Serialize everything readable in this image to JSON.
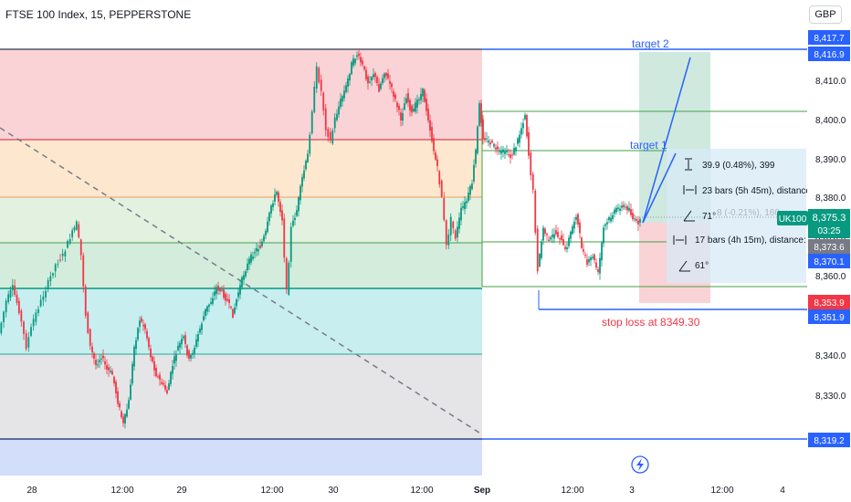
{
  "header": {
    "title": "FTSE 100 Index, 15, PEPPERSTONE",
    "currency": "GBP"
  },
  "price_axis": {
    "ticks": [
      "8,410.0",
      "8,400.0",
      "8,390.0",
      "8,380.0",
      "8,370.0",
      "8,360.0",
      "8,350.0",
      "8,340.0",
      "8,330.0"
    ]
  },
  "time_axis": {
    "ticks": [
      "28",
      "12:00",
      "29",
      "12:00",
      "30",
      "12:00",
      "Sep",
      "12:00",
      "3",
      "12:00",
      "4"
    ]
  },
  "price_labels": [
    {
      "text": "8,417.7",
      "color": "#2962ff"
    },
    {
      "text": "8,416.9",
      "color": "#2962ff"
    },
    {
      "text": "8,370.1",
      "color": "#2962ff"
    },
    {
      "text": "8,373.6",
      "color": "#787b86"
    },
    {
      "text": "8,353.9",
      "color": "#f23645"
    },
    {
      "text": "8,351.9",
      "color": "#2962ff"
    },
    {
      "text": "8,319.2",
      "color": "#2962ff"
    }
  ],
  "current_price": {
    "symbol": "UK100",
    "price": "8,375.3",
    "countdown": "03:25",
    "color": "#089981"
  },
  "annotations": {
    "target2": "target 2",
    "target1": "target 1",
    "stop_loss": "stop loss at 8349.30"
  },
  "measure": {
    "price_range": "39.9 (0.48%), 399",
    "bars_range": "23 bars (5h 45m), distance:",
    "angle_top": "71°",
    "bars_range2": "17 bars (4h 15m), distance: 9",
    "angle_bottom": "61°",
    "hidden_text": "8 (-0.21%), 160"
  },
  "colors": {
    "up": "#089981",
    "down": "#f23645",
    "accent": "#2962ff"
  }
}
